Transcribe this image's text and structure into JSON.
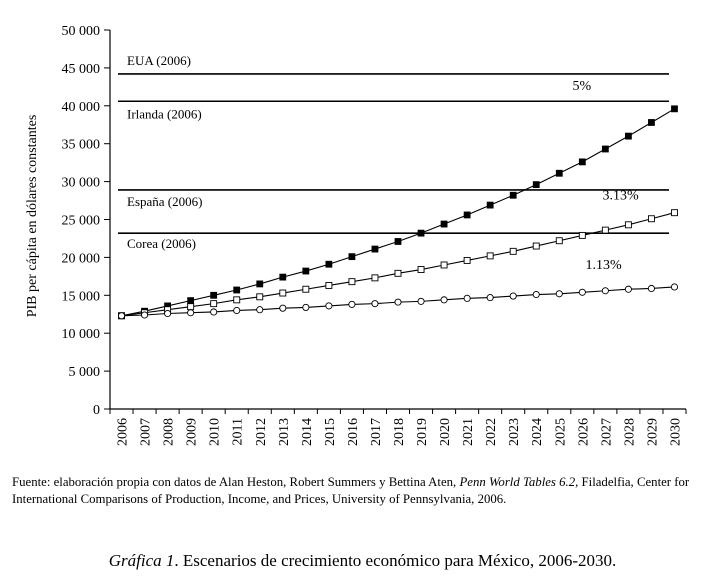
{
  "chart_data": {
    "type": "line",
    "ylabel": "PIB per cápita en dólares constantes",
    "xlabel": "",
    "ylim": [
      0,
      50000
    ],
    "yticks": [
      0,
      5000,
      10000,
      15000,
      20000,
      25000,
      30000,
      35000,
      40000,
      45000,
      50000
    ],
    "ytick_labels": [
      "0",
      "5 000",
      "10 000",
      "15 000",
      "20 000",
      "25 000",
      "30 000",
      "35 000",
      "40 000",
      "45 000",
      "50 000"
    ],
    "x": [
      "2006",
      "2007",
      "2008",
      "2009",
      "2010",
      "2011",
      "2012",
      "2013",
      "2014",
      "2015",
      "2016",
      "2017",
      "2018",
      "2019",
      "2020",
      "2021",
      "2022",
      "2023",
      "2024",
      "2025",
      "2026",
      "2027",
      "2028",
      "2029",
      "2030"
    ],
    "grid": false,
    "reference_lines": [
      {
        "label": "EUA (2006)",
        "value": 44200
      },
      {
        "label": "Irlanda (2006)",
        "value": 40600
      },
      {
        "label": "España (2006)",
        "value": 28900
      },
      {
        "label": "Corea (2006)",
        "value": 23200
      }
    ],
    "series": [
      {
        "name": "5%",
        "marker": "filled-square",
        "values": [
          12300,
          12900,
          13600,
          14300,
          15000,
          15700,
          16500,
          17400,
          18200,
          19100,
          20100,
          21100,
          22100,
          23200,
          24400,
          25600,
          26900,
          28200,
          29600,
          31100,
          32600,
          34300,
          36000,
          37800,
          39600
        ]
      },
      {
        "name": "3.13%",
        "marker": "open-square",
        "values": [
          12300,
          12700,
          13100,
          13500,
          13900,
          14400,
          14800,
          15300,
          15800,
          16300,
          16800,
          17300,
          17900,
          18400,
          19000,
          19600,
          20200,
          20800,
          21500,
          22200,
          22900,
          23600,
          24300,
          25100,
          25900
        ]
      },
      {
        "name": "1.13%",
        "marker": "open-circle",
        "values": [
          12300,
          12400,
          12600,
          12700,
          12800,
          13000,
          13100,
          13300,
          13400,
          13600,
          13800,
          13900,
          14100,
          14200,
          14400,
          14600,
          14700,
          14900,
          15100,
          15200,
          15400,
          15600,
          15800,
          15900,
          16100
        ]
      }
    ]
  },
  "source": {
    "prefix": "Fuente: elaboración propia con datos de Alan Heston, Robert Summers y Bettina Aten, ",
    "title_italic": "Penn World Tables 6.2",
    "suffix": ", Filadelfia, Center for International Comparisons of Production, Income, and Prices, University of Pennsylvania, 2006."
  },
  "caption": {
    "label_italic": "Gráfica 1",
    "text": ". Escenarios de crecimiento económico para México, 2006-2030."
  }
}
